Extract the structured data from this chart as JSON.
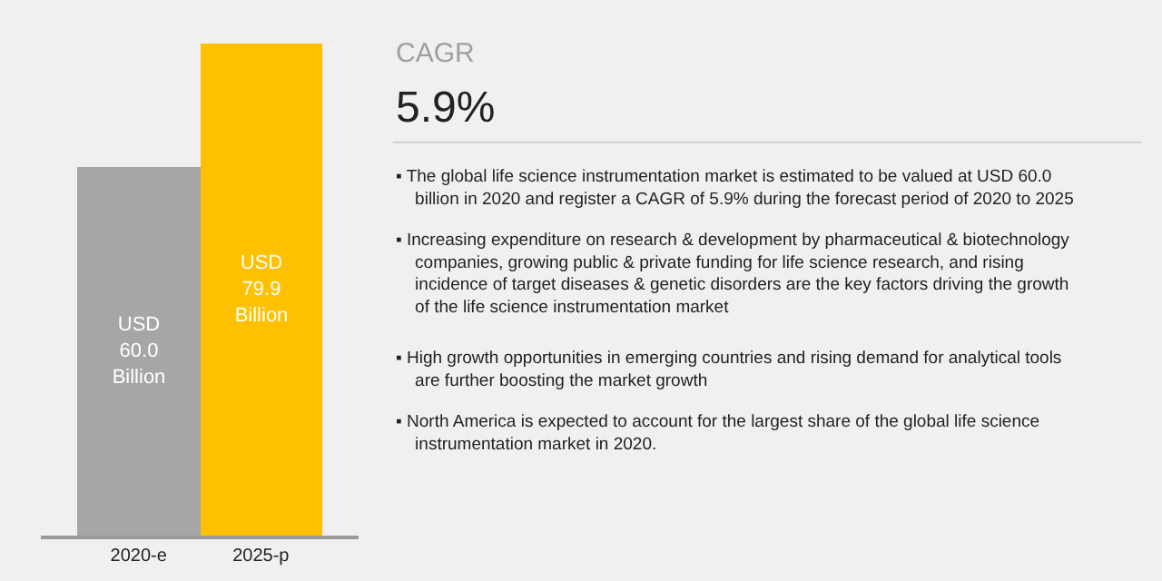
{
  "chart_data": {
    "type": "bar",
    "categories": [
      "2020-e",
      "2025-p"
    ],
    "values": [
      60.0,
      79.9
    ],
    "colors": [
      "#a6a6a6",
      "#ffc000"
    ],
    "value_labels": [
      "USD 60.0 Billion",
      "USD 79.9 Billion"
    ],
    "annotations": [
      "CAGR",
      "5.9%",
      "▪ The global life science instrumentation market is estimated to be valued at USD 60.0 billion in 2020 and register a CAGR of 5.9% during the forecast period of 2020 to 2025",
      "▪ Increasing expenditure on research & development by pharmaceutical & biotechnology companies, growing public & private funding for life science research, and rising incidence of target diseases & genetic disorders are the key factors driving the growth of the life science instrumentation market",
      "▪ High growth opportunities in emerging countries and rising demand for analytical tools are further boosting the market growth",
      "▪ North America is expected to account for the largest share of the global life science instrumentation market in 2020."
    ],
    "grid": false
  }
}
